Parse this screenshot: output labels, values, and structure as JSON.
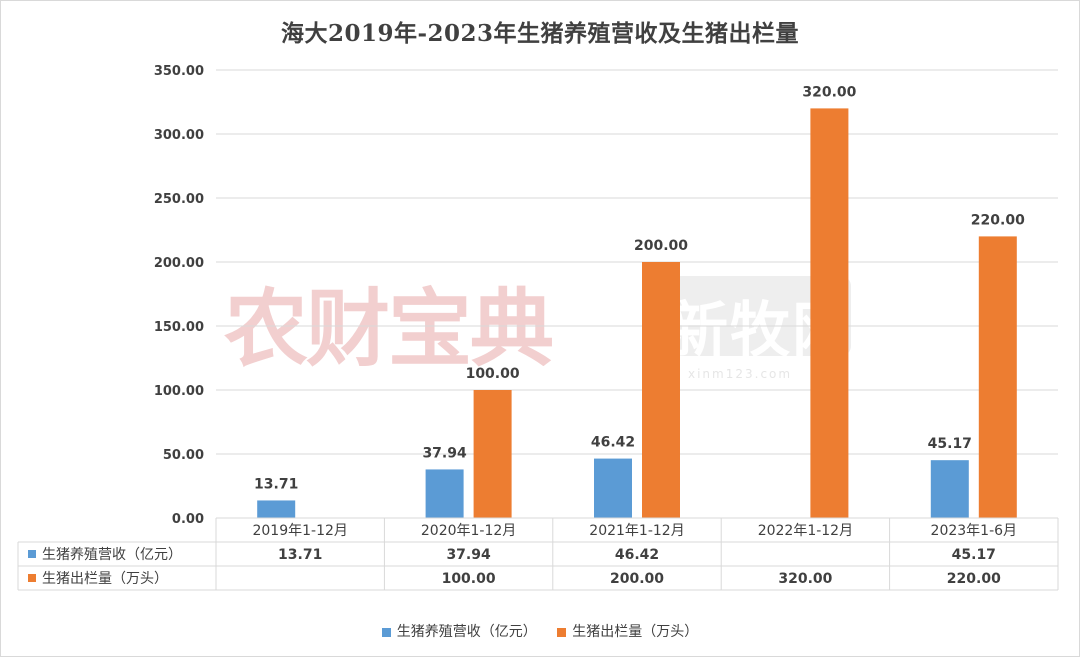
{
  "title": "海大2019年-2023年生猪养殖营收及生猪出栏量",
  "colors": {
    "series1": "#5b9bd5",
    "series2": "#ed7d31",
    "grid": "#d9d9d9",
    "text": "#404040"
  },
  "watermarks": {
    "left": "农财宝典",
    "right": "新牧网",
    "right_sub": "xinm123.com"
  },
  "chart_data": {
    "type": "bar",
    "categories": [
      "2019年1-12月",
      "2020年1-12月",
      "2021年1-12月",
      "2022年1-12月",
      "2023年1-6月"
    ],
    "series": [
      {
        "name": "生猪养殖营收（亿元）",
        "values": [
          13.71,
          37.94,
          46.42,
          null,
          45.17
        ]
      },
      {
        "name": "生猪出栏量（万头）",
        "values": [
          null,
          100,
          200,
          320,
          220
        ]
      }
    ],
    "data_labels": [
      [
        "13.71",
        "37.94",
        "46.42",
        "",
        "45.17"
      ],
      [
        "",
        "100.00",
        "200.00",
        "320.00",
        "220.00"
      ]
    ],
    "yticks": [
      "0.00",
      "50.00",
      "100.00",
      "150.00",
      "200.00",
      "250.00",
      "300.00",
      "350.00"
    ],
    "ylim": [
      0,
      350
    ],
    "grid": true,
    "data_table": true,
    "legend": "bottom"
  }
}
